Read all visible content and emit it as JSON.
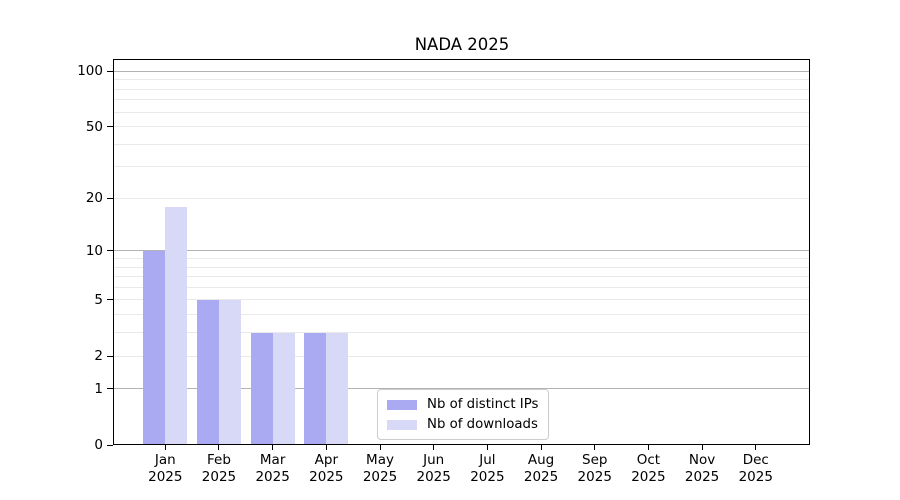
{
  "chart_data": {
    "type": "bar",
    "title": "NADA 2025",
    "categories": [
      "Jan",
      "Feb",
      "Mar",
      "Apr",
      "May",
      "Jun",
      "Jul",
      "Aug",
      "Sep",
      "Oct",
      "Nov",
      "Dec"
    ],
    "category_year": "2025",
    "series": [
      {
        "name": "Nb of distinct IPs",
        "color": "#a9aaf2",
        "values": [
          10,
          5,
          3,
          3,
          0,
          0,
          0,
          0,
          0,
          0,
          0,
          0
        ]
      },
      {
        "name": "Nb of downloads",
        "color": "#d8d9f7",
        "values": [
          18,
          5,
          3,
          3,
          0,
          0,
          0,
          0,
          0,
          0,
          0,
          0
        ]
      }
    ],
    "y_axis": {
      "scale": "log1p",
      "tick_labels": [
        0,
        1,
        2,
        5,
        10,
        20,
        50,
        100
      ],
      "range": [
        0,
        115
      ],
      "major_gridlines": [
        1,
        10,
        100
      ],
      "minor_gridlines": [
        2,
        3,
        4,
        5,
        6,
        7,
        8,
        9,
        20,
        30,
        40,
        50,
        60,
        70,
        80,
        90
      ]
    },
    "x_axis": {
      "tick_per_month": true
    },
    "legend": {
      "position": "lower-center",
      "entries": [
        "Nb of distinct IPs",
        "Nb of downloads"
      ]
    },
    "colors": {
      "background": "#ffffff",
      "axis": "#000000",
      "major_grid": "#b3b3b3",
      "minor_grid": "#e9e9e9",
      "title_text": "#000000"
    }
  }
}
